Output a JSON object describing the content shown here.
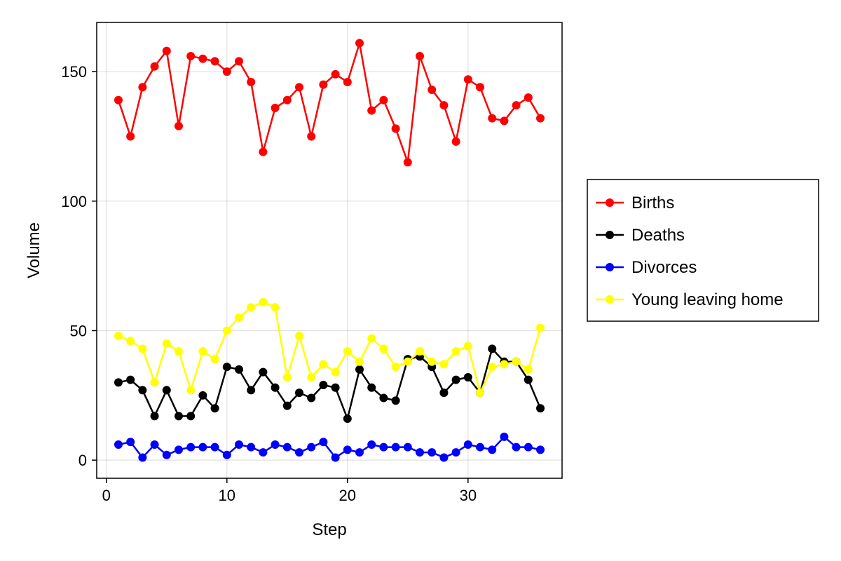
{
  "chart_data": {
    "type": "line",
    "xlabel": "Step",
    "ylabel": "Volume",
    "xlim": [
      -0.8,
      37.8
    ],
    "ylim": [
      -7,
      169
    ],
    "xticks": [
      0,
      10,
      20,
      30
    ],
    "yticks": [
      0,
      50,
      100,
      150
    ],
    "grid": true,
    "legend_position": "right",
    "x": [
      1,
      2,
      3,
      4,
      5,
      6,
      7,
      8,
      9,
      10,
      11,
      12,
      13,
      14,
      15,
      16,
      17,
      18,
      19,
      20,
      21,
      22,
      23,
      24,
      25,
      26,
      27,
      28,
      29,
      30,
      31,
      32,
      33,
      34,
      35,
      36
    ],
    "series": [
      {
        "name": "Births",
        "color": "#ff0000",
        "values": [
          139,
          125,
          144,
          152,
          158,
          129,
          156,
          155,
          154,
          150,
          154,
          146,
          119,
          136,
          139,
          144,
          125,
          145,
          149,
          146,
          161,
          135,
          139,
          128,
          115,
          156,
          143,
          137,
          123,
          147,
          144,
          132,
          131,
          137,
          140,
          132
        ]
      },
      {
        "name": "Deaths",
        "color": "#000000",
        "values": [
          30,
          31,
          27,
          17,
          27,
          17,
          17,
          25,
          20,
          36,
          35,
          27,
          34,
          28,
          21,
          26,
          24,
          29,
          28,
          16,
          35,
          28,
          24,
          23,
          39,
          40,
          36,
          26,
          31,
          32,
          26,
          43,
          38,
          38,
          31,
          20
        ]
      },
      {
        "name": "Divorces",
        "color": "#0000ff",
        "values": [
          6,
          7,
          1,
          6,
          2,
          4,
          5,
          5,
          5,
          2,
          6,
          5,
          3,
          6,
          5,
          3,
          5,
          7,
          1,
          4,
          3,
          6,
          5,
          5,
          5,
          3,
          3,
          1,
          3,
          6,
          5,
          4,
          9,
          5,
          5,
          4
        ]
      },
      {
        "name": "Young leaving home",
        "color": "#ffff00",
        "values": [
          48,
          46,
          43,
          30,
          45,
          42,
          27,
          42,
          39,
          50,
          55,
          59,
          61,
          59,
          32,
          48,
          32,
          37,
          34,
          42,
          38,
          47,
          43,
          36,
          38,
          42,
          38,
          37,
          42,
          44,
          26,
          36,
          37,
          38,
          35,
          51
        ]
      }
    ]
  }
}
